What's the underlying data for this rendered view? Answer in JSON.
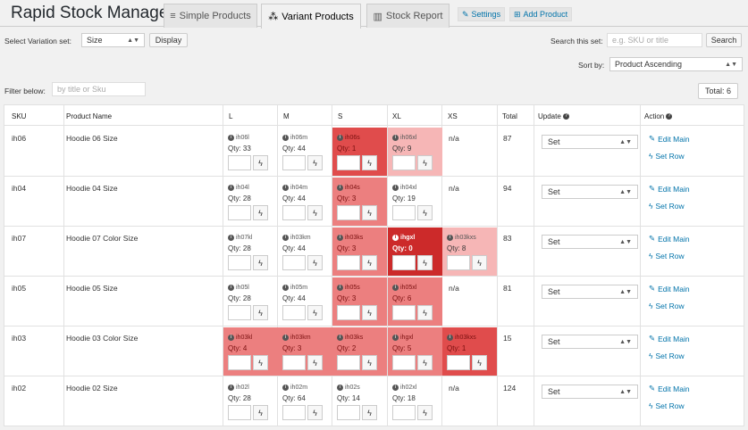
{
  "app_title": "Rapid Stock Manager",
  "tabs": [
    {
      "label": "Simple Products",
      "icon": "list-icon",
      "active": false
    },
    {
      "label": "Variant Products",
      "icon": "cubes-icon",
      "active": true
    },
    {
      "label": "Stock Report",
      "icon": "chart-icon",
      "active": false
    }
  ],
  "header_buttons": {
    "settings": "Settings",
    "add_product": "Add Product"
  },
  "controls": {
    "variation_label": "Select Variation set:",
    "variation_value": "Size",
    "display_button": "Display",
    "search_label": "Search this set:",
    "search_placeholder": "e.g. SKU or title",
    "search_button": "Search",
    "sort_label": "Sort by:",
    "sort_value": "Product Ascending",
    "filter_label": "Filter below:",
    "filter_placeholder": "by title or Sku",
    "total": "Total: 6"
  },
  "columns": [
    "SKU",
    "Product Name",
    "L",
    "M",
    "S",
    "XL",
    "XS",
    "Total",
    "Update",
    "Action"
  ],
  "update_default": "Set",
  "actions": {
    "edit": "Edit Main",
    "set_row": "Set Row"
  },
  "colors": {
    "low": "#f6b6b6",
    "medium": "#ec7f7f",
    "high": "#e04c4c",
    "out": "#cc2a2a",
    "link": "#0073aa"
  },
  "rows": [
    {
      "sku": "ih06",
      "name": "Hoodie 06 Size",
      "total": "87",
      "cells": [
        {
          "sku": "ih06l",
          "qty": "Qty: 33",
          "level": ""
        },
        {
          "sku": "ih06m",
          "qty": "Qty: 44",
          "level": ""
        },
        {
          "sku": "ih06s",
          "qty": "Qty: 1",
          "level": "high"
        },
        {
          "sku": "ih06xl",
          "qty": "Qty: 9",
          "level": "low"
        },
        {
          "na": "n/a"
        }
      ]
    },
    {
      "sku": "ih04",
      "name": "Hoodie 04 Size",
      "total": "94",
      "cells": [
        {
          "sku": "ih04l",
          "qty": "Qty: 28",
          "level": ""
        },
        {
          "sku": "ih04m",
          "qty": "Qty: 44",
          "level": ""
        },
        {
          "sku": "ih04s",
          "qty": "Qty: 3",
          "level": "med"
        },
        {
          "sku": "ih04xl",
          "qty": "Qty: 19",
          "level": ""
        },
        {
          "na": "n/a"
        }
      ]
    },
    {
      "sku": "ih07",
      "name": "Hoodie 07 Color Size",
      "total": "83",
      "cells": [
        {
          "sku": "ih07kl",
          "qty": "Qty: 28",
          "level": ""
        },
        {
          "sku": "ih03km",
          "qty": "Qty: 44",
          "level": ""
        },
        {
          "sku": "ih03ks",
          "qty": "Qty: 3",
          "level": "med"
        },
        {
          "sku": "ihgxl",
          "qty": "Qty: 0",
          "level": "out"
        },
        {
          "sku": "ih03kxs",
          "qty": "Qty: 8",
          "level": "low"
        }
      ]
    },
    {
      "sku": "ih05",
      "name": "Hoodie 05 Size",
      "total": "81",
      "cells": [
        {
          "sku": "ih05l",
          "qty": "Qty: 28",
          "level": ""
        },
        {
          "sku": "ih05m",
          "qty": "Qty: 44",
          "level": ""
        },
        {
          "sku": "ih05s",
          "qty": "Qty: 3",
          "level": "med"
        },
        {
          "sku": "ih05xl",
          "qty": "Qty: 6",
          "level": "med"
        },
        {
          "na": "n/a"
        }
      ]
    },
    {
      "sku": "ih03",
      "name": "Hoodie 03 Color Size",
      "total": "15",
      "cells": [
        {
          "sku": "ih03kl",
          "qty": "Qty: 4",
          "level": "med"
        },
        {
          "sku": "ih03km",
          "qty": "Qty: 3",
          "level": "med"
        },
        {
          "sku": "ih03ks",
          "qty": "Qty: 2",
          "level": "med"
        },
        {
          "sku": "ihgxl",
          "qty": "Qty: 5",
          "level": "med"
        },
        {
          "sku": "ih03kxs",
          "qty": "Qty: 1",
          "level": "high"
        }
      ]
    },
    {
      "sku": "ih02",
      "name": "Hoodie 02 Size",
      "total": "124",
      "cells": [
        {
          "sku": "ih02l",
          "qty": "Qty: 28",
          "level": ""
        },
        {
          "sku": "ih02m",
          "qty": "Qty: 64",
          "level": ""
        },
        {
          "sku": "ih02s",
          "qty": "Qty: 14",
          "level": ""
        },
        {
          "sku": "ih02xl",
          "qty": "Qty: 18",
          "level": ""
        },
        {
          "na": "n/a"
        }
      ]
    }
  ]
}
